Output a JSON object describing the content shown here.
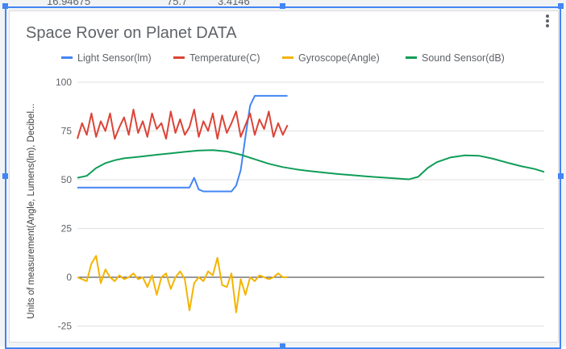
{
  "sheet": {
    "background_value_1": "16.94675",
    "background_value_2": "75.7",
    "background_value_3": "3.4146"
  },
  "chart": {
    "title": "Space Rover on Planet DATA",
    "menu_icon": "more-vert-icon"
  },
  "chart_data": {
    "type": "line",
    "title": "Space Rover on Planet DATA",
    "xlabel": "",
    "ylabel": "Units of measurement(Angle, Lumens(lm), Decibel...",
    "ylim": [
      -30,
      100
    ],
    "yticks": [
      -25,
      0,
      25,
      50,
      75,
      100
    ],
    "grid": true,
    "legend_position": "top",
    "x_range": [
      0,
      100
    ],
    "series": [
      {
        "name": "Light Sensor(lm)",
        "color": "#4285f4",
        "x": [
          0,
          10,
          20,
          24,
          25,
          26,
          27,
          30,
          32,
          33,
          34,
          35,
          36,
          37,
          38,
          39,
          42,
          45
        ],
        "y": [
          46,
          46,
          46,
          46,
          51,
          45,
          44,
          44,
          44,
          44,
          47,
          55,
          72,
          88,
          93,
          93,
          93,
          93
        ]
      },
      {
        "name": "Temperature(C)",
        "color": "#db4437",
        "x": [
          0,
          1,
          2,
          3,
          4,
          5,
          6,
          7,
          8,
          9,
          10,
          11,
          12,
          13,
          14,
          15,
          16,
          17,
          18,
          19,
          20,
          21,
          22,
          23,
          24,
          25,
          26,
          27,
          28,
          29,
          30,
          31,
          32,
          33,
          34,
          35,
          36,
          37,
          38,
          39,
          40,
          41,
          42,
          43,
          44,
          45
        ],
        "y": [
          71,
          79,
          73,
          84,
          72,
          80,
          75,
          84,
          71,
          77,
          82,
          73,
          86,
          74,
          80,
          72,
          84,
          76,
          79,
          71,
          85,
          74,
          81,
          73,
          77,
          86,
          72,
          80,
          75,
          84,
          71,
          83,
          74,
          79,
          85,
          72,
          78,
          84,
          73,
          81,
          76,
          85,
          72,
          79,
          73,
          78
        ]
      },
      {
        "name": "Gyroscope(Angle)",
        "color": "#f4b400",
        "x": [
          0,
          2,
          3,
          4,
          5,
          6,
          7,
          8,
          9,
          10,
          11,
          12,
          13,
          14,
          15,
          16,
          17,
          18,
          19,
          20,
          21,
          22,
          23,
          24,
          25,
          26,
          27,
          28,
          29,
          30,
          31,
          32,
          33,
          34,
          35,
          36,
          37,
          38,
          39,
          40,
          41,
          42,
          43,
          44,
          45
        ],
        "y": [
          0,
          -2,
          7,
          11,
          -3,
          4,
          0,
          -2,
          1,
          -1,
          0,
          2,
          -1,
          0,
          -5,
          1,
          -9,
          0,
          2,
          -6,
          0,
          3,
          -1,
          -17,
          -3,
          0,
          -2,
          3,
          1,
          10,
          -4,
          -5,
          2,
          -18,
          -1,
          -9,
          0,
          -2,
          1,
          0,
          -1,
          0,
          2,
          0,
          0
        ]
      },
      {
        "name": "Sound Sensor(dB)",
        "color": "#0f9d58",
        "x": [
          0,
          2,
          4,
          6,
          8,
          10,
          12,
          14,
          17,
          20,
          23,
          26,
          29,
          32,
          35,
          38,
          41,
          44,
          47,
          50,
          53,
          56,
          59,
          62,
          65,
          68,
          71,
          73,
          75,
          77,
          80,
          83,
          86,
          89,
          92,
          95,
          98,
          100
        ],
        "y": [
          51,
          52,
          56,
          58.5,
          60,
          61,
          61.5,
          62,
          62.8,
          63.5,
          64.3,
          65,
          65.2,
          64.5,
          62.8,
          60.5,
          58.2,
          56.5,
          55.3,
          54.4,
          53.6,
          52.9,
          52.3,
          51.7,
          51.2,
          50.7,
          50.2,
          51.5,
          56,
          59,
          61.5,
          62.5,
          62.3,
          60.8,
          58.8,
          57,
          55.5,
          54
        ]
      }
    ]
  }
}
